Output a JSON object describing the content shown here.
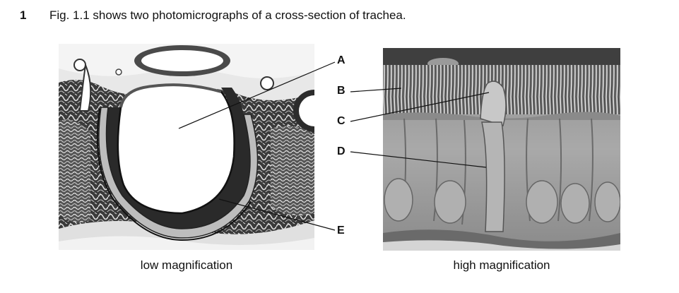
{
  "question": {
    "number": "1",
    "text": "Fig. 1.1 shows two photomicrographs of a cross-section of trachea."
  },
  "figure": {
    "captions": {
      "left": "low magnification",
      "right": "high magnification"
    },
    "labels": {
      "A": "A",
      "B": "B",
      "C": "C",
      "D": "D",
      "E": "E"
    }
  }
}
